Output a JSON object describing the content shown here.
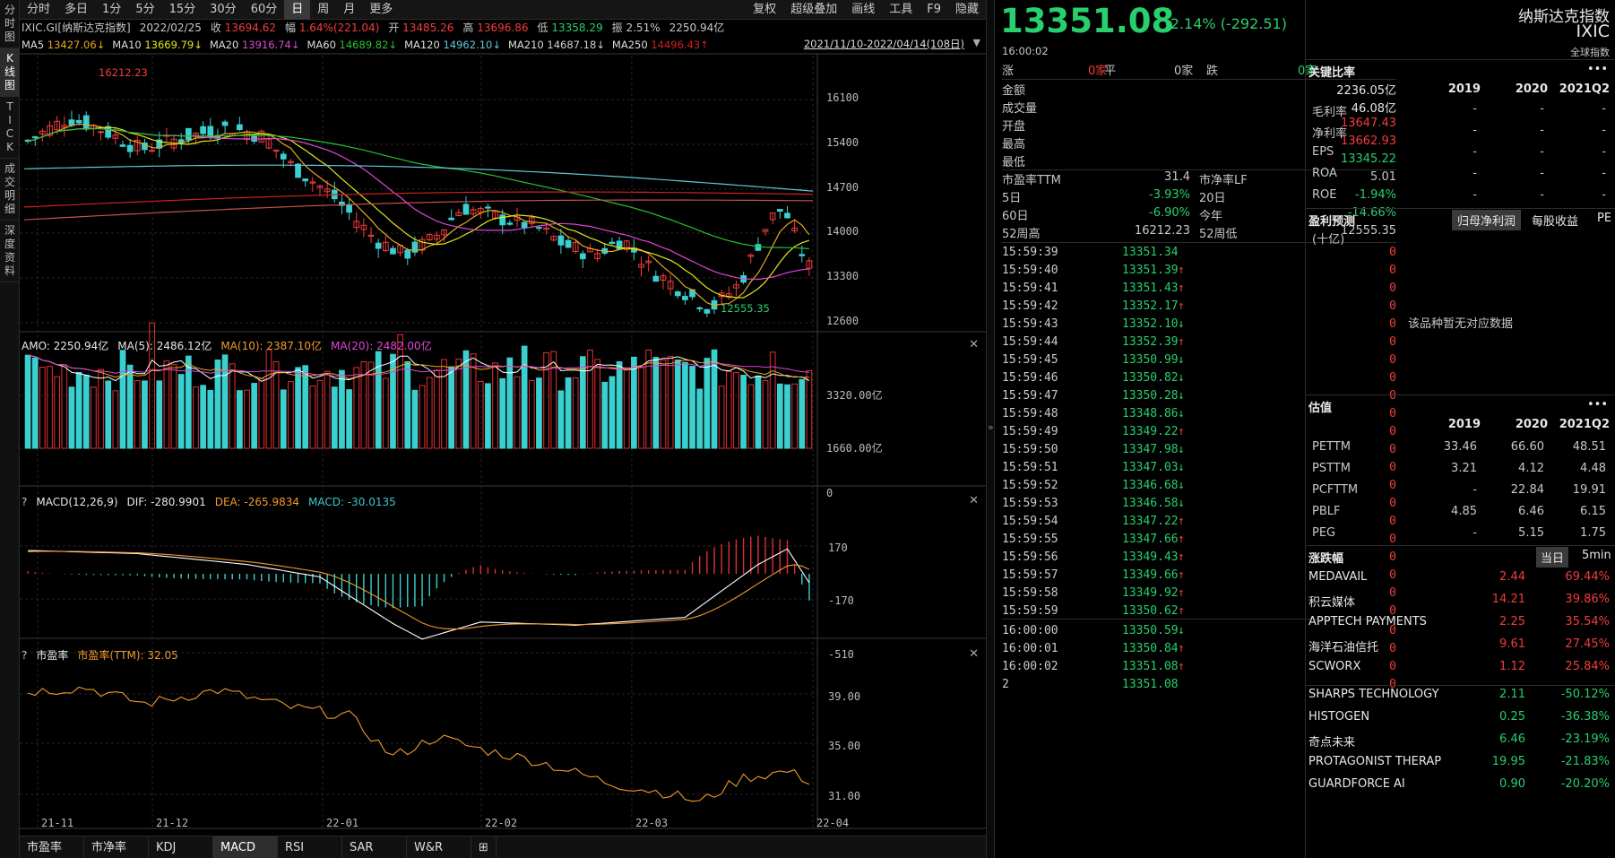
{
  "vtabs": [
    "分时图",
    "K线图",
    "TICK",
    "成交明细",
    "深度资料"
  ],
  "toolbar": {
    "items": [
      "分时",
      "多日",
      "1分",
      "5分",
      "15分",
      "30分",
      "60分",
      "日",
      "周",
      "月",
      "更多"
    ],
    "right": [
      "复权",
      "超级叠加",
      "画线",
      "工具",
      "F9",
      "隐藏"
    ]
  },
  "info": {
    "code": "IXIC.GI[纳斯达克指数]",
    "date": "2022/02/25",
    "close_lbl": "收",
    "close": "13694.62",
    "chg_lbl": "幅",
    "chg": "1.64%(221.04)",
    "open_lbl": "开",
    "open": "13485.26",
    "high_lbl": "高",
    "high": "13696.86",
    "low_lbl": "低",
    "low": "13358.29",
    "amp_lbl": "振",
    "amp": "2.51%",
    "amt": "2250.94亿"
  },
  "ma": [
    {
      "n": "MA5",
      "v": "13427.06↓",
      "c": "#e6a620"
    },
    {
      "n": "MA10",
      "v": "13669.79↓",
      "c": "#e6e619"
    },
    {
      "n": "MA20",
      "v": "13916.74↓",
      "c": "#e046d8"
    },
    {
      "n": "MA60",
      "v": "14689.82↓",
      "c": "#27c030"
    },
    {
      "n": "MA120",
      "v": "14962.10↓",
      "c": "#60c8d8"
    },
    {
      "n": "MA210",
      "v": "14687.18↓",
      "c": "#d0d0d0"
    },
    {
      "n": "MA250",
      "v": "14496.43↑",
      "c": "#d02020"
    }
  ],
  "range": "2021/11/10-2022/04/14(108日)",
  "price_axis": [
    "16100",
    "15400",
    "14700",
    "14000",
    "13300",
    "12600"
  ],
  "hi_mark": "16212.23",
  "lo_mark": "12555.35",
  "amo": {
    "label": "AMO: 2250.94亿",
    "ma5": "MA(5): 2486.12亿",
    "ma10": "MA(10): 2387.10亿",
    "ma20": "MA(20): 2482.00亿",
    "axis": [
      "3320.00亿",
      "1660.00亿",
      "0"
    ]
  },
  "macd": {
    "q": "?",
    "label": "MACD(12,26,9)",
    "dif": "DIF: -280.9901",
    "dea": "DEA: -265.9834",
    "macd": "MACD: -30.0135",
    "axis": [
      "170",
      "-170",
      "-510"
    ]
  },
  "pe": {
    "q": "?",
    "label": "市盈率",
    "ttm": "市盈率(TTM): 32.05",
    "axis": [
      "39.00",
      "35.00",
      "31.00"
    ]
  },
  "dates": [
    "21-11",
    "21-12",
    "22-01",
    "22-02",
    "22-03",
    "22-04"
  ],
  "btabs": [
    "市盈率",
    "市净率",
    "KDJ",
    "MACD",
    "RSI",
    "SAR",
    "W&R"
  ],
  "quote": {
    "price": "13351.08",
    "chg": "-2.14% (-292.51)",
    "time": "16:00:02",
    "name": "纳斯达克指数",
    "sym": "IXIC",
    "global": "全球指数",
    "zhang": "涨",
    "zhang_v": "0家",
    "ping": "平",
    "ping_v": "0家",
    "die": "跌",
    "die_v": "0家",
    "stats": [
      [
        "金额",
        "2236.05亿",
        "w"
      ],
      [
        "成交量",
        "46.08亿",
        "w"
      ],
      [
        "开盘",
        "13647.43",
        "r"
      ],
      [
        "最高",
        "13662.93",
        "r"
      ],
      [
        "最低",
        "13345.22",
        "g"
      ]
    ],
    "pe_l": "市盈率TTM",
    "pe_v": "31.4",
    "pb_l": "市净率LF",
    "pb_v": "5.01",
    "d5_l": "5日",
    "d5_v": "-3.93%",
    "d20_l": "20日",
    "d20_v": "-1.94%",
    "d60_l": "60日",
    "d60_v": "-6.90%",
    "ytd_l": "今年",
    "ytd_v": "-14.66%",
    "wh_l": "52周高",
    "wh_v": "16212.23",
    "wl_l": "52周低",
    "wl_v": "12555.35"
  },
  "ticks": [
    [
      "15:59:39",
      "13351.34",
      "",
      "0"
    ],
    [
      "15:59:40",
      "13351.39",
      "↑",
      "0"
    ],
    [
      "15:59:41",
      "13351.43",
      "↑",
      "0"
    ],
    [
      "15:59:42",
      "13352.17",
      "↑",
      "0"
    ],
    [
      "15:59:43",
      "13352.10",
      "↓",
      "0"
    ],
    [
      "15:59:44",
      "13352.39",
      "↑",
      "0"
    ],
    [
      "15:59:45",
      "13350.99",
      "↓",
      "0"
    ],
    [
      "15:59:46",
      "13350.82",
      "↓",
      "0"
    ],
    [
      "15:59:47",
      "13350.28",
      "↓",
      "0"
    ],
    [
      "15:59:48",
      "13348.86",
      "↓",
      "0"
    ],
    [
      "15:59:49",
      "13349.22",
      "↑",
      "0"
    ],
    [
      "15:59:50",
      "13347.98",
      "↓",
      "0"
    ],
    [
      "15:59:51",
      "13347.03",
      "↓",
      "0"
    ],
    [
      "15:59:52",
      "13346.68",
      "↓",
      "0"
    ],
    [
      "15:59:53",
      "13346.58",
      "↓",
      "0"
    ],
    [
      "15:59:54",
      "13347.22",
      "↑",
      "0"
    ],
    [
      "15:59:55",
      "13347.66",
      "↑",
      "0"
    ],
    [
      "15:59:56",
      "13349.43",
      "↑",
      "0"
    ],
    [
      "15:59:57",
      "13349.66",
      "↑",
      "0"
    ],
    [
      "15:59:58",
      "13349.92",
      "↑",
      "0"
    ],
    [
      "15:59:59",
      "13350.62",
      "↑",
      "0"
    ],
    [
      "16:00:00",
      "13350.59",
      "↓",
      "0"
    ],
    [
      "16:00:01",
      "13350.84",
      "↑",
      "0"
    ],
    [
      "16:00:02",
      "13351.08",
      "↑",
      "0"
    ],
    [
      "2",
      "13351.08",
      "",
      "0"
    ]
  ],
  "ratios": {
    "title": "关键比率",
    "years": [
      "2019",
      "2020",
      "2021Q2"
    ],
    "rows": [
      [
        "毛利率",
        "-",
        "-",
        "-"
      ],
      [
        "净利率",
        "-",
        "-",
        "-"
      ],
      [
        "EPS",
        "-",
        "-",
        "-"
      ],
      [
        "ROA",
        "-",
        "-",
        "-"
      ],
      [
        "ROE",
        "-",
        "-",
        "-"
      ]
    ]
  },
  "forecast": {
    "title": "盈利预测",
    "tabs": [
      "归母净利润",
      "每股收益",
      "PE"
    ],
    "unit": "(十亿)",
    "empty": "该品种暂无对应数据"
  },
  "valuation": {
    "title": "估值",
    "years": [
      "2019",
      "2020",
      "2021Q2"
    ],
    "rows": [
      [
        "PETTM",
        "33.46",
        "66.60",
        "48.51"
      ],
      [
        "PSTTM",
        "3.21",
        "4.12",
        "4.48"
      ],
      [
        "PCFTTM",
        "-",
        "22.84",
        "19.91"
      ],
      [
        "PBLF",
        "4.85",
        "6.46",
        "6.15"
      ],
      [
        "PEG",
        "-",
        "5.15",
        "1.75"
      ]
    ]
  },
  "movers": {
    "title": "涨跌幅",
    "tabs": [
      "当日",
      "5min"
    ],
    "up": [
      [
        "MEDAVAIL",
        "2.44",
        "69.44%"
      ],
      [
        "积云媒体",
        "14.21",
        "39.86%"
      ],
      [
        "APPTECH PAYMENTS",
        "2.25",
        "35.54%"
      ],
      [
        "海洋石油信托",
        "9.61",
        "27.45%"
      ],
      [
        "SCWORX",
        "1.12",
        "25.84%"
      ]
    ],
    "down": [
      [
        "SHARPS TECHNOLOGY",
        "2.11",
        "-50.12%"
      ],
      [
        "HISTOGEN",
        "0.25",
        "-36.38%"
      ],
      [
        "奇点未来",
        "6.46",
        "-23.19%"
      ],
      [
        "PROTAGONIST THERAP",
        "19.95",
        "-21.83%"
      ],
      [
        "GUARDFORCE AI",
        "0.90",
        "-20.20%"
      ]
    ]
  },
  "more": "•••"
}
